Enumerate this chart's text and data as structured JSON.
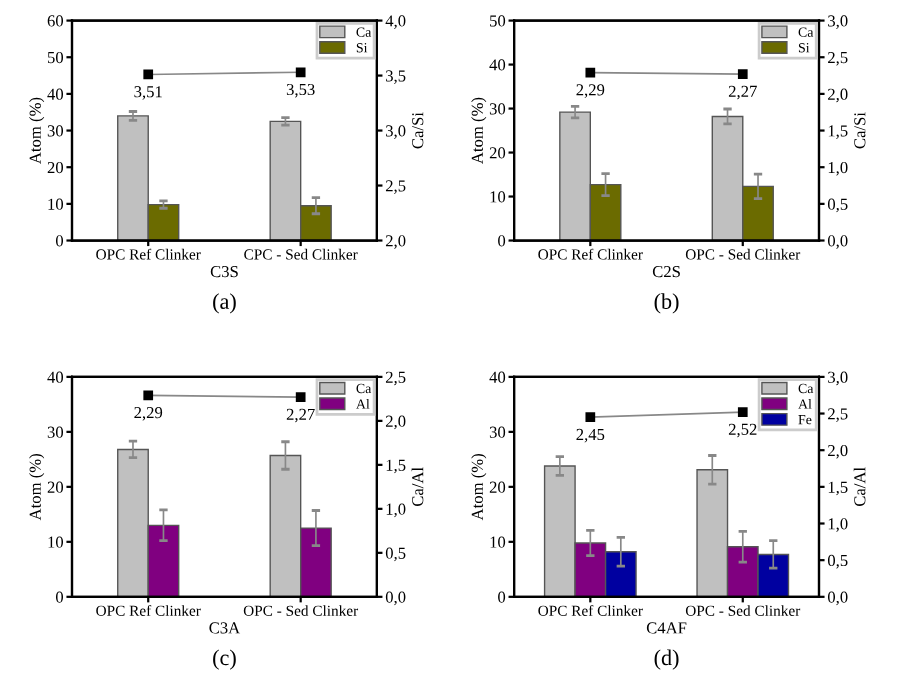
{
  "chart_data": [
    {
      "type": "bar",
      "xlabel": "C3S",
      "ylabel": "Atom (%)",
      "y2label": "Ca/Si",
      "annotations": [
        "(a)"
      ],
      "categories": [
        "OPC Ref Clinker",
        "CPC - Sed Clinker"
      ],
      "ylim": [
        0,
        60
      ],
      "yticks": [
        0,
        10,
        20,
        30,
        40,
        50,
        60
      ],
      "y2lim": [
        2.0,
        4.0
      ],
      "y2ticks": [
        {
          "value": 2.0,
          "label": "2,0"
        },
        {
          "value": 2.5,
          "label": "2,5"
        },
        {
          "value": 3.0,
          "label": "3,0"
        },
        {
          "value": 3.5,
          "label": "3,5"
        },
        {
          "value": 4.0,
          "label": "4,0"
        }
      ],
      "legend": "top right",
      "grid": false,
      "series": [
        {
          "name": "Ca",
          "color": "#c0c0c0",
          "values": [
            34,
            32.5
          ],
          "errors": [
            1.2,
            1.0
          ]
        },
        {
          "name": "Si",
          "color": "#6b6b00",
          "values": [
            9.8,
            9.5
          ],
          "errors": [
            1.0,
            2.2
          ]
        },
        {
          "type": "line",
          "axis": "y2",
          "color": "#000000",
          "marker": "square",
          "line_style": "solid",
          "values": [
            3.51,
            3.53
          ],
          "value_labels": [
            "3,51",
            "3,53"
          ]
        }
      ]
    },
    {
      "type": "bar",
      "xlabel": "C2S",
      "ylabel": "Atom (%)",
      "y2label": "Ca/Si",
      "annotations": [
        "(b)"
      ],
      "categories": [
        "OPC Ref Clinker",
        "OPC - Sed Clinker"
      ],
      "ylim": [
        0,
        50
      ],
      "yticks": [
        0,
        10,
        20,
        30,
        40,
        50
      ],
      "y2lim": [
        0.0,
        3.0
      ],
      "y2ticks": [
        {
          "value": 0.0,
          "label": "0,0"
        },
        {
          "value": 0.5,
          "label": "0,5"
        },
        {
          "value": 1.0,
          "label": "1,0"
        },
        {
          "value": 1.5,
          "label": "1,5"
        },
        {
          "value": 2.0,
          "label": "2,0"
        },
        {
          "value": 2.5,
          "label": "2,5"
        },
        {
          "value": 3.0,
          "label": "3,0"
        }
      ],
      "legend": "top right",
      "grid": false,
      "series": [
        {
          "name": "Ca",
          "color": "#c0c0c0",
          "values": [
            29.2,
            28.2
          ],
          "errors": [
            1.3,
            1.7
          ]
        },
        {
          "name": "Si",
          "color": "#6b6b00",
          "values": [
            12.7,
            12.3
          ],
          "errors": [
            2.5,
            2.8
          ]
        },
        {
          "type": "line",
          "axis": "y2",
          "color": "#000000",
          "marker": "square",
          "line_style": "solid",
          "values": [
            2.29,
            2.27
          ],
          "value_labels": [
            "2,29",
            "2,27"
          ]
        }
      ]
    },
    {
      "type": "bar",
      "xlabel": "C3A",
      "ylabel": "Atom (%)",
      "y2label": "Ca/Al",
      "annotations": [
        "(c)"
      ],
      "categories": [
        "OPC Ref Clinker",
        "OPC - Sed Clinker"
      ],
      "ylim": [
        0,
        40
      ],
      "yticks": [
        0,
        10,
        20,
        30,
        40
      ],
      "y2lim": [
        0.0,
        2.5
      ],
      "y2ticks": [
        {
          "value": 0.0,
          "label": "0,0"
        },
        {
          "value": 0.5,
          "label": "0,5"
        },
        {
          "value": 1.0,
          "label": "1,0"
        },
        {
          "value": 1.5,
          "label": "1,5"
        },
        {
          "value": 2.0,
          "label": "2,0"
        },
        {
          "value": 2.5,
          "label": "2,5"
        }
      ],
      "legend": "top right",
      "grid": false,
      "series": [
        {
          "name": "Ca",
          "color": "#c0c0c0",
          "values": [
            26.8,
            25.7
          ],
          "errors": [
            1.5,
            2.5
          ]
        },
        {
          "name": "Al",
          "color": "#800080",
          "values": [
            13,
            12.5
          ],
          "errors": [
            2.8,
            3.2
          ]
        },
        {
          "type": "line",
          "axis": "y2",
          "color": "#000000",
          "marker": "square",
          "line_style": "solid",
          "values": [
            2.29,
            2.27
          ],
          "value_labels": [
            "2,29",
            "2,27"
          ]
        }
      ]
    },
    {
      "type": "bar",
      "xlabel": "C4AF",
      "ylabel": "Atom (%)",
      "y2label": "Ca/Al",
      "annotations": [
        "(d)"
      ],
      "categories": [
        "OPC Ref Clinker",
        "OPC - Sed Clinker"
      ],
      "ylim": [
        0,
        40
      ],
      "yticks": [
        0,
        10,
        20,
        30,
        40
      ],
      "y2lim": [
        0.0,
        3.0
      ],
      "y2ticks": [
        {
          "value": 0.0,
          "label": "0,0"
        },
        {
          "value": 0.5,
          "label": "0,5"
        },
        {
          "value": 1.0,
          "label": "1,0"
        },
        {
          "value": 1.5,
          "label": "1,5"
        },
        {
          "value": 2.0,
          "label": "2,0"
        },
        {
          "value": 2.5,
          "label": "2,5"
        },
        {
          "value": 3.0,
          "label": "3,0"
        }
      ],
      "legend": "top right",
      "grid": false,
      "series": [
        {
          "name": "Ca",
          "color": "#c0c0c0",
          "values": [
            23.8,
            23.1
          ],
          "errors": [
            1.7,
            2.6
          ]
        },
        {
          "name": "Al",
          "color": "#800080",
          "values": [
            9.8,
            9.1
          ],
          "errors": [
            2.3,
            2.8
          ]
        },
        {
          "name": "Fe",
          "color": "#0000a0",
          "values": [
            8.2,
            7.7
          ],
          "errors": [
            2.6,
            2.5
          ]
        },
        {
          "type": "line",
          "axis": "y2",
          "color": "#000000",
          "marker": "square",
          "line_style": "solid",
          "values": [
            2.45,
            2.52
          ],
          "value_labels": [
            "2,45",
            "2,52"
          ]
        }
      ]
    }
  ]
}
